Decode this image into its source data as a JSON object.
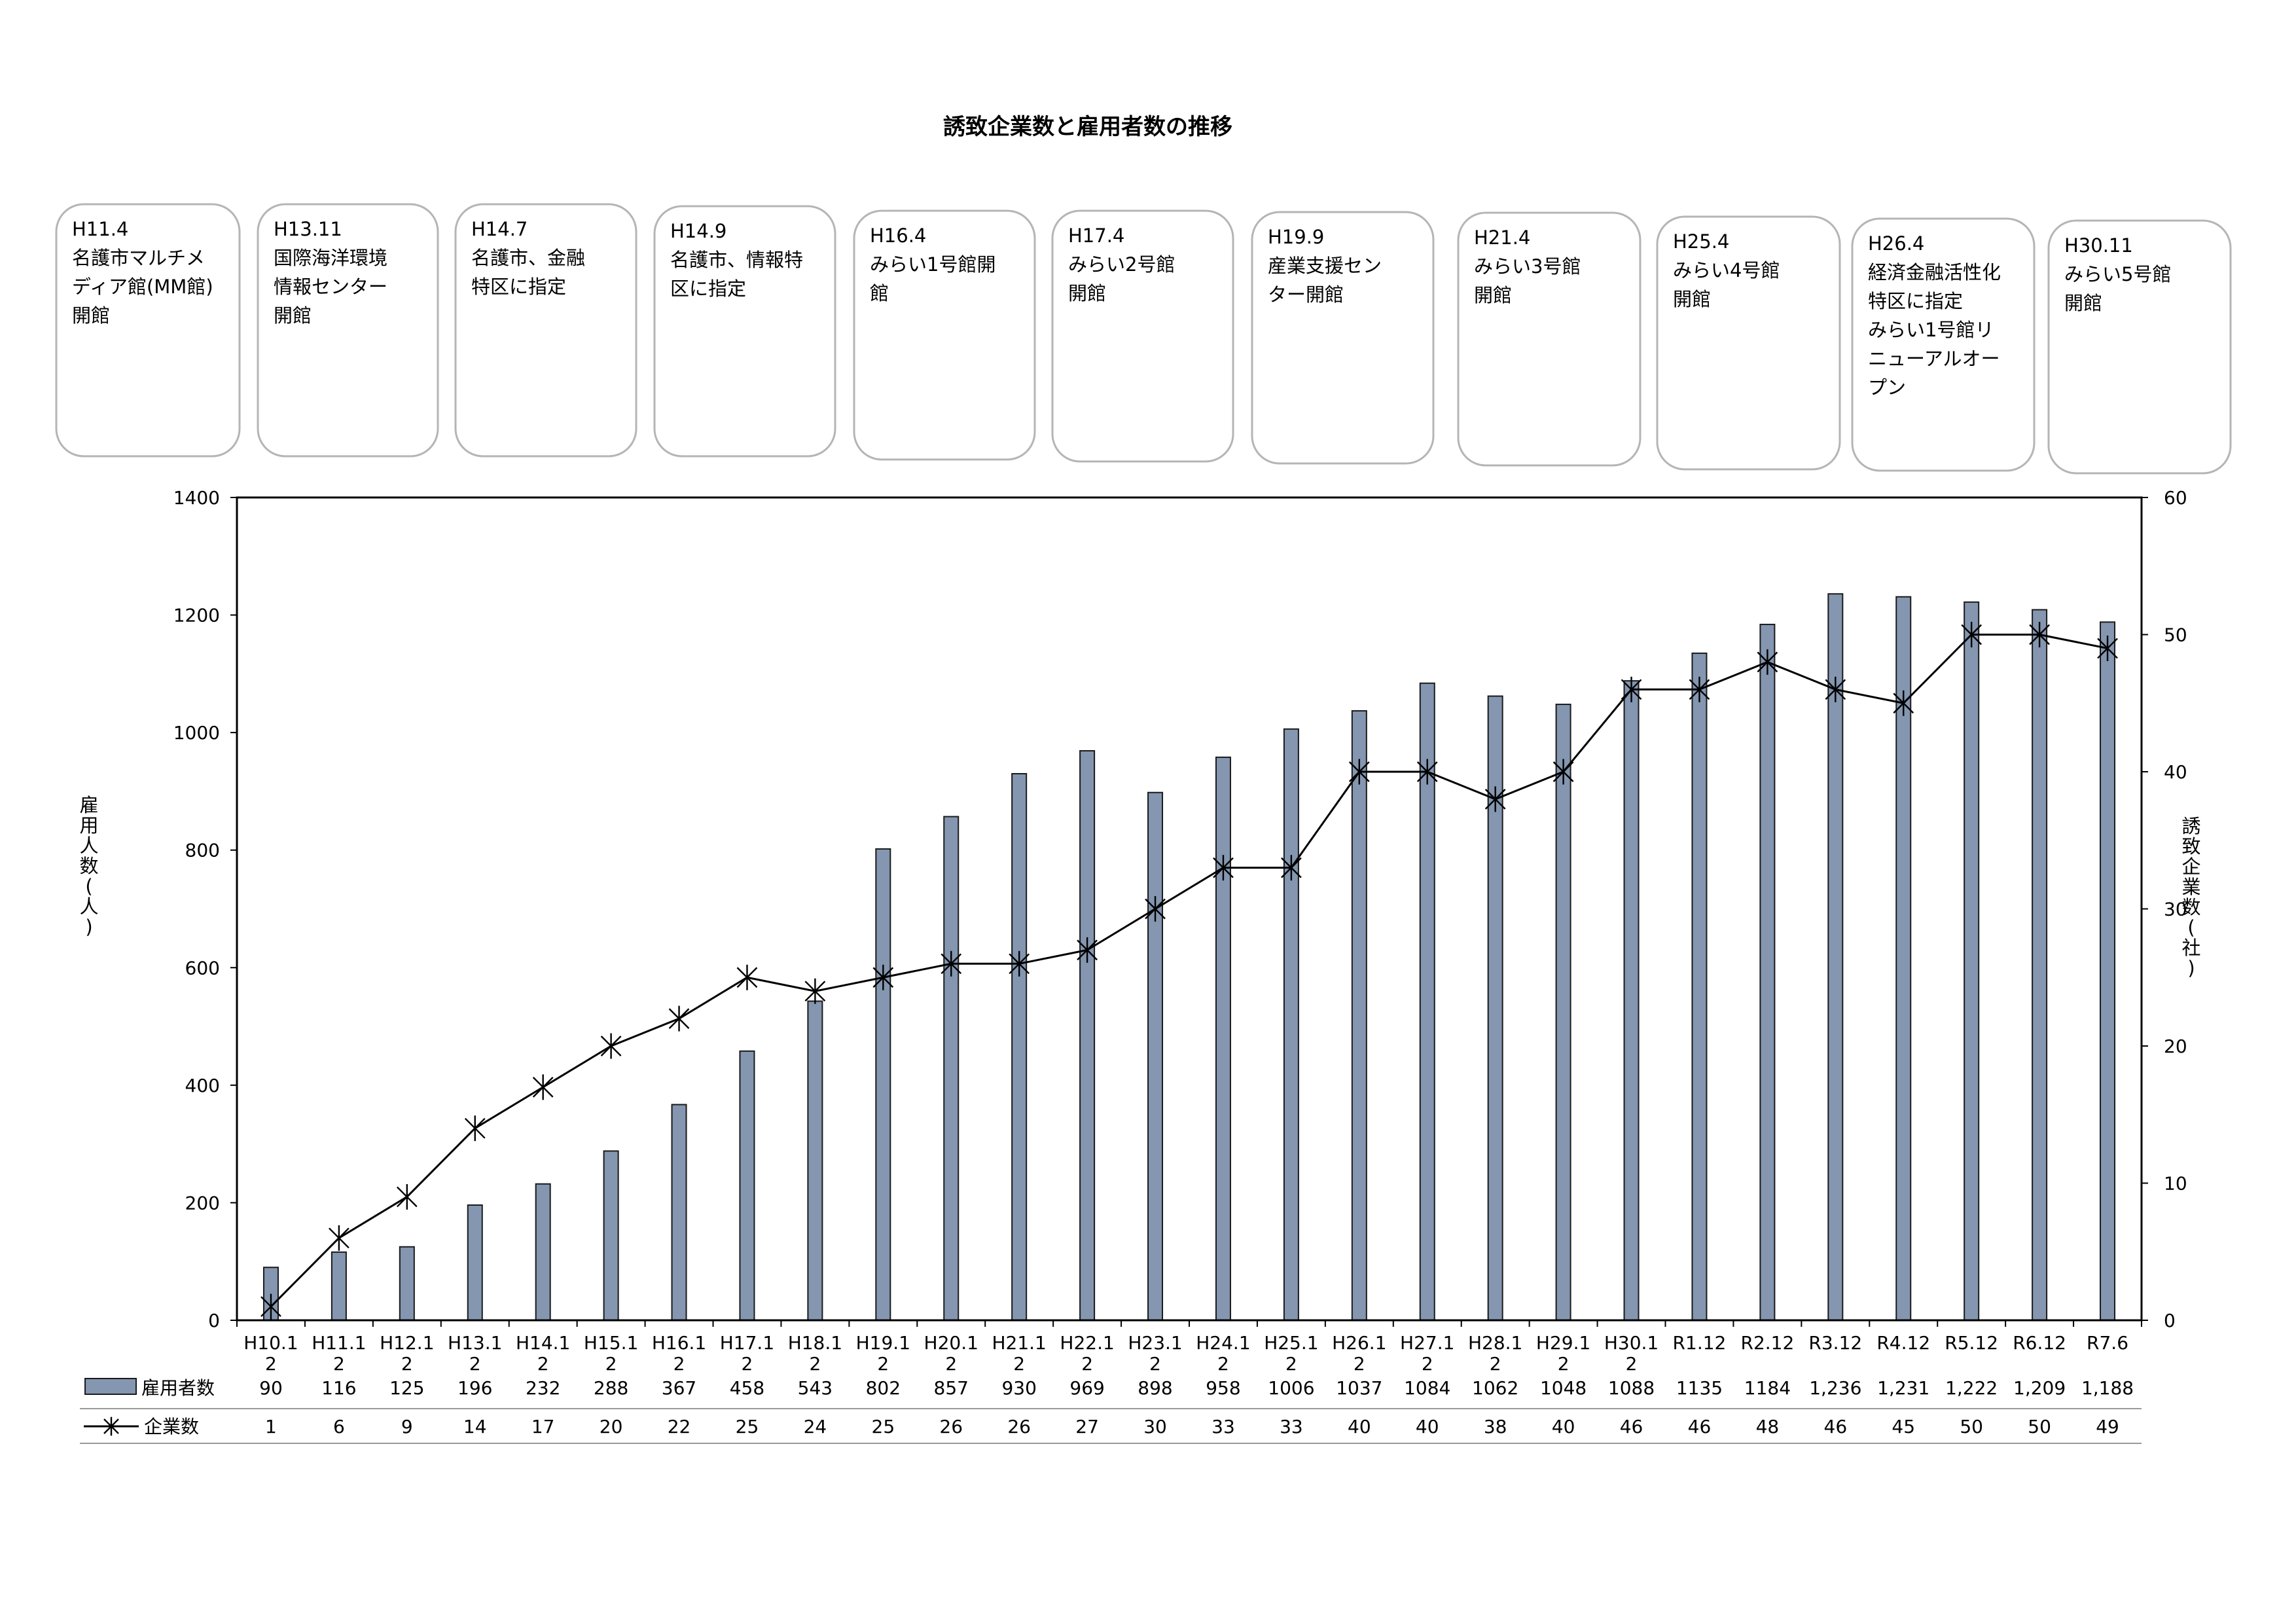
{
  "chart_data": {
    "type": "bar",
    "title": "誘致企業数と雇用者数の推移",
    "categories": [
      [
        "H10.1",
        "2"
      ],
      [
        "H11.1",
        "2"
      ],
      [
        "H12.1",
        "2"
      ],
      [
        "H13.1",
        "2"
      ],
      [
        "H14.1",
        "2"
      ],
      [
        "H15.1",
        "2"
      ],
      [
        "H16.1",
        "2"
      ],
      [
        "H17.1",
        "2"
      ],
      [
        "H18.1",
        "2"
      ],
      [
        "H19.1",
        "2"
      ],
      [
        "H20.1",
        "2"
      ],
      [
        "H21.1",
        "2"
      ],
      [
        "H22.1",
        "2"
      ],
      [
        "H23.1",
        "2"
      ],
      [
        "H24.1",
        "2"
      ],
      [
        "H25.1",
        "2"
      ],
      [
        "H26.1",
        "2"
      ],
      [
        "H27.1",
        "2"
      ],
      [
        "H28.1",
        "2"
      ],
      [
        "H29.1",
        "2"
      ],
      [
        "H30.1",
        "2"
      ],
      [
        "R1.12"
      ],
      [
        "R2.12"
      ],
      [
        "R3.12"
      ],
      [
        "R4.12"
      ],
      [
        "R5.12"
      ],
      [
        "R6.12"
      ],
      [
        "R7.6"
      ]
    ],
    "series": [
      {
        "name": "雇用者数",
        "type": "bar",
        "axis": "left",
        "color": "#8496b0",
        "values": [
          90,
          116,
          125,
          196,
          232,
          288,
          367,
          458,
          543,
          802,
          857,
          930,
          969,
          898,
          958,
          1006,
          1037,
          1084,
          1062,
          1048,
          1088,
          1135,
          1184,
          1236,
          1231,
          1222,
          1209,
          1188
        ],
        "labels": [
          "90",
          "116",
          "125",
          "196",
          "232",
          "288",
          "367",
          "458",
          "543",
          "802",
          "857",
          "930",
          "969",
          "898",
          "958",
          "1006",
          "1037",
          "1084",
          "1062",
          "1048",
          "1088",
          "1135",
          "1184",
          "1,236",
          "1,231",
          "1,222",
          "1,209",
          "1,188"
        ]
      },
      {
        "name": "企業数",
        "type": "line",
        "axis": "right",
        "color": "#000000",
        "marker": "asterisk",
        "values": [
          1,
          6,
          9,
          14,
          17,
          20,
          22,
          25,
          24,
          25,
          26,
          26,
          27,
          30,
          33,
          33,
          40,
          40,
          38,
          40,
          46,
          46,
          48,
          46,
          45,
          50,
          50,
          49
        ],
        "labels": [
          "1",
          "6",
          "9",
          "14",
          "17",
          "20",
          "22",
          "25",
          "24",
          "25",
          "26",
          "26",
          "27",
          "30",
          "33",
          "33",
          "40",
          "40",
          "38",
          "40",
          "46",
          "46",
          "48",
          "46",
          "45",
          "50",
          "50",
          "49"
        ]
      }
    ],
    "ylabel": "雇用人数(人)",
    "ylabel_right": "誘致企業数(社)",
    "ylim": [
      0,
      1400
    ],
    "yticks": [
      0,
      200,
      400,
      600,
      800,
      1000,
      1200,
      1400
    ],
    "ylim_right": [
      0,
      60
    ],
    "yticks_right": [
      0,
      10,
      20,
      30,
      40,
      50,
      60
    ],
    "grid": false,
    "legend": "data-table"
  },
  "events": [
    [
      "H11.4",
      "名護市マルチメ",
      "ディア館(MM館)",
      "開館"
    ],
    [
      "H13.11",
      "国際海洋環境",
      "情報センター",
      "開館"
    ],
    [
      "H14.7",
      "名護市、金融",
      "特区に指定"
    ],
    [
      "H14.9",
      "名護市、情報特",
      "区に指定"
    ],
    [
      "H16.4",
      "みらい1号館開",
      "館"
    ],
    [
      "H17.4",
      "みらい2号館",
      "開館"
    ],
    [
      "H19.9",
      "産業支援セン",
      "ター開館"
    ],
    [
      "H21.4",
      "みらい3号館",
      "開館"
    ],
    [
      "H25.4",
      "みらい4号館",
      "開館"
    ],
    [
      "H26.4",
      "経済金融活性化",
      "特区に指定",
      "みらい1号館リ",
      "ニューアルオー",
      "プン"
    ],
    [
      "H30.11",
      "みらい5号館",
      "開館"
    ]
  ]
}
